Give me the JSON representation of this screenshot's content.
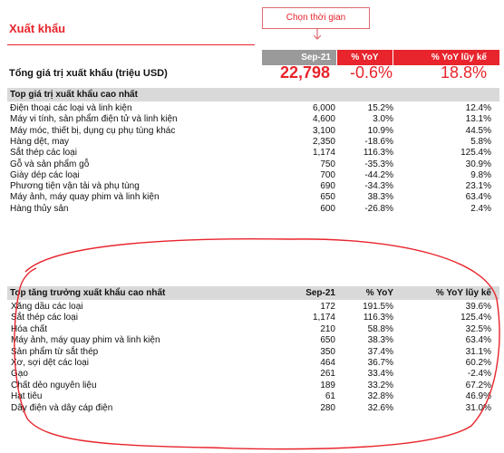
{
  "title": "Xuất khẩu",
  "callout": "Chọn thời gian",
  "header": {
    "period": "Sep-21",
    "yoy": "% YoY",
    "ytd": "% YoY lũy kế"
  },
  "total": {
    "label": "Tổng giá trị xuất khẩu (triệu USD)",
    "value": "22,798",
    "yoy": "-0.6%",
    "ytd": "18.8%"
  },
  "top_value": {
    "heading": "Top giá trị xuất khẩu cao nhất",
    "rows": [
      {
        "name": "Điện thoại các loại và linh kiện",
        "value": "6,000",
        "yoy": "15.2%",
        "ytd": "12.4%"
      },
      {
        "name": "Máy vi tính, sản phẩm điện tử và linh kiện",
        "value": "4,600",
        "yoy": "3.0%",
        "ytd": "13.1%"
      },
      {
        "name": "Máy móc, thiết bị, dụng cụ phụ tùng khác",
        "value": "3,100",
        "yoy": "10.9%",
        "ytd": "44.5%"
      },
      {
        "name": "Hàng dệt, may",
        "value": "2,350",
        "yoy": "-18.6%",
        "ytd": "5.8%"
      },
      {
        "name": "Sắt thép các loại",
        "value": "1,174",
        "yoy": "116.3%",
        "ytd": "125.4%"
      },
      {
        "name": "Gỗ và sản phẩm gỗ",
        "value": "750",
        "yoy": "-35.3%",
        "ytd": "30.9%"
      },
      {
        "name": "Giày dép các loại",
        "value": "700",
        "yoy": "-44.2%",
        "ytd": "9.8%"
      },
      {
        "name": "Phương tiện vận tải và phụ tùng",
        "value": "690",
        "yoy": "-34.3%",
        "ytd": "23.1%"
      },
      {
        "name": "Máy ảnh, máy quay phim và linh kiện",
        "value": "650",
        "yoy": "38.3%",
        "ytd": "63.4%"
      },
      {
        "name": "Hàng thủy sản",
        "value": "600",
        "yoy": "-26.8%",
        "ytd": "2.4%"
      }
    ]
  },
  "top_growth": {
    "heading": "Top tăng trưởng xuất khẩu cao nhất",
    "period": "Sep-21",
    "yoy": "% YoY",
    "ytd": "% YoY lũy kế",
    "rows": [
      {
        "name": "Xăng dầu các loại",
        "value": "172",
        "yoy": "191.5%",
        "ytd": "39.6%"
      },
      {
        "name": "Sắt thép các loại",
        "value": "1,174",
        "yoy": "116.3%",
        "ytd": "125.4%"
      },
      {
        "name": "Hóa chất",
        "value": "210",
        "yoy": "58.8%",
        "ytd": "32.5%"
      },
      {
        "name": "Máy ảnh, máy quay phim và linh kiện",
        "value": "650",
        "yoy": "38.3%",
        "ytd": "63.4%"
      },
      {
        "name": "Sản phẩm từ sắt thép",
        "value": "350",
        "yoy": "37.4%",
        "ytd": "31.1%"
      },
      {
        "name": "Xơ, sợi dệt các loại",
        "value": "464",
        "yoy": "36.7%",
        "ytd": "60.2%"
      },
      {
        "name": "Gạo",
        "value": "261",
        "yoy": "33.4%",
        "ytd": "-2.4%"
      },
      {
        "name": "Chất dẻo nguyên liệu",
        "value": "189",
        "yoy": "33.2%",
        "ytd": "67.2%"
      },
      {
        "name": "Hạt tiêu",
        "value": "61",
        "yoy": "32.8%",
        "ytd": "46.9%"
      },
      {
        "name": "Dây điện và dây cáp điện",
        "value": "280",
        "yoy": "32.6%",
        "ytd": "31.0%"
      }
    ]
  },
  "colors": {
    "accent": "#e8242c",
    "header_gray": "#9a9a9a",
    "section_gray": "#d9d9d9"
  }
}
